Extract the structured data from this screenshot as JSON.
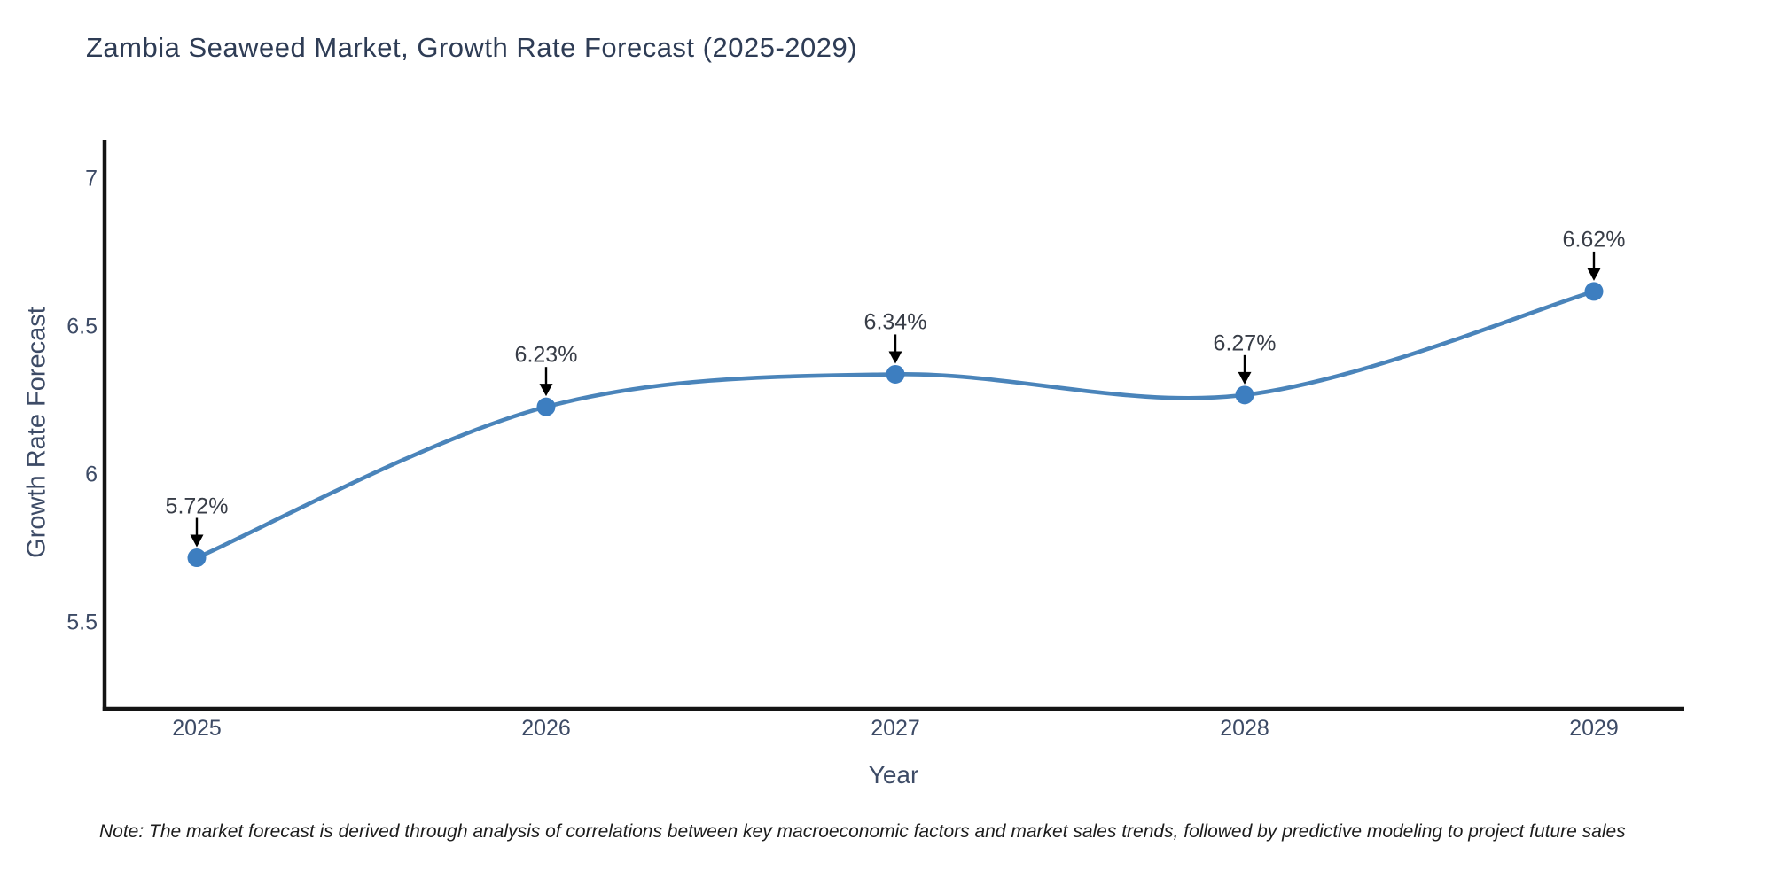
{
  "chart_data": {
    "type": "line",
    "title": "Zambia Seaweed Market, Growth Rate Forecast (2025-2029)",
    "xlabel": "Year",
    "ylabel": "Growth Rate Forecast",
    "x": [
      "2025",
      "2026",
      "2027",
      "2028",
      "2029"
    ],
    "values": [
      5.72,
      6.23,
      6.34,
      6.27,
      6.62
    ],
    "point_labels": [
      "5.72%",
      "6.23%",
      "6.34%",
      "6.27%",
      "6.62%"
    ],
    "y_ticks": [
      7,
      6.5,
      6,
      5.5
    ],
    "ylim": [
      5.2,
      7.25
    ],
    "grid": false,
    "legend_position": "none",
    "line_color": "#4a84ba",
    "marker_color": "#3d7ec0",
    "axis_color": "#141414",
    "annotation_arrow_color": "#000000"
  },
  "note": "Note: The market forecast is derived through analysis of correlations between key macroeconomic factors and market sales trends, followed by predictive modeling to project future sales"
}
